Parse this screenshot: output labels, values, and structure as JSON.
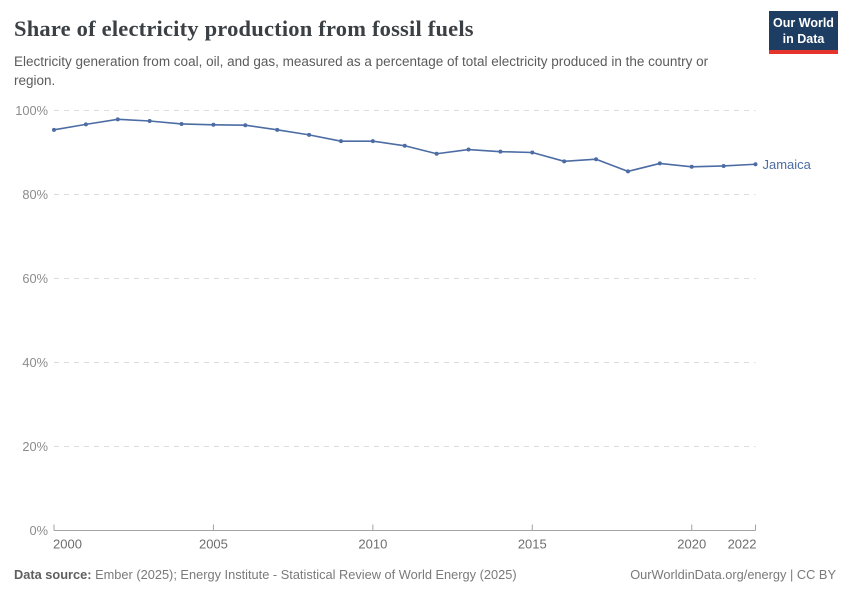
{
  "header": {
    "title": "Share of electricity production from fossil fuels",
    "subtitle": "Electricity generation from coal, oil, and gas, measured as a percentage of total electricity produced in the country or region.",
    "logo": {
      "line1": "Our World",
      "line2": "in Data",
      "bg_color": "#1d3d63",
      "accent_color": "#e5332d"
    }
  },
  "chart_data": {
    "type": "line",
    "title": "Share of electricity production from fossil fuels",
    "x": [
      2000,
      2001,
      2002,
      2003,
      2004,
      2005,
      2006,
      2007,
      2008,
      2009,
      2010,
      2011,
      2012,
      2013,
      2014,
      2015,
      2016,
      2017,
      2018,
      2019,
      2020,
      2021,
      2022
    ],
    "series": [
      {
        "name": "Jamaica",
        "color": "#4c6ca4",
        "values": [
          95.4,
          96.7,
          97.9,
          97.5,
          96.8,
          96.6,
          96.5,
          95.4,
          94.2,
          92.7,
          92.7,
          91.6,
          89.7,
          90.7,
          90.2,
          90.0,
          87.9,
          88.4,
          85.5,
          87.4,
          86.6,
          86.8,
          87.2
        ]
      }
    ],
    "xlabel": "",
    "ylabel": "",
    "ylim": [
      0,
      100
    ],
    "yticks": [
      {
        "value": 0,
        "label": "0%"
      },
      {
        "value": 20,
        "label": "20%"
      },
      {
        "value": 40,
        "label": "40%"
      },
      {
        "value": 60,
        "label": "60%"
      },
      {
        "value": 80,
        "label": "80%"
      },
      {
        "value": 100,
        "label": "100%"
      }
    ],
    "xticks": [
      2000,
      2005,
      2010,
      2015,
      2020,
      2022
    ],
    "grid": "horizontal-dashed",
    "grid_color": "#dcdcdc",
    "axis_color": "#a3a3a3",
    "tick_label_color": "#6e6e6e",
    "y_label_color": "#8c8c8c",
    "legend_position": "end-of-line"
  },
  "footer": {
    "source_label": "Data source:",
    "source_text": " Ember (2025); Energy Institute - Statistical Review of World Energy (2025)",
    "right_text": "OurWorldinData.org/energy | CC BY"
  }
}
